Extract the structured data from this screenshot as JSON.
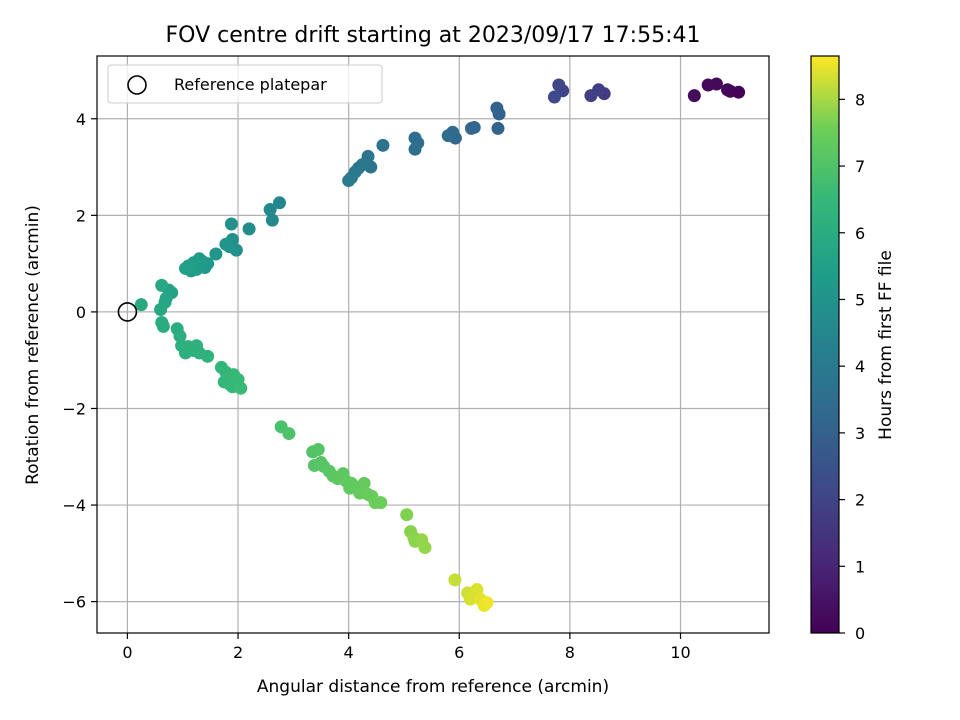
{
  "chart_data": {
    "type": "scatter",
    "title": "FOV centre drift starting at 2023/09/17 17:55:41",
    "xlabel": "Angular distance from reference (arcmin)",
    "ylabel": "Rotation from reference (arcmin)",
    "xlim": [
      -0.55,
      11.6
    ],
    "ylim": [
      -6.65,
      5.3
    ],
    "xticks": [
      0,
      2,
      4,
      6,
      8,
      10
    ],
    "yticks": [
      -6,
      -4,
      -2,
      0,
      2,
      4
    ],
    "xtick_labels": [
      "0",
      "2",
      "4",
      "6",
      "8",
      "10"
    ],
    "ytick_labels": [
      "−6",
      "−4",
      "−2",
      "0",
      "2",
      "4"
    ],
    "grid": true,
    "legend": {
      "position": "upper-left",
      "entries": [
        "Reference platepar"
      ]
    },
    "colorbar": {
      "label": "Hours from first FF file",
      "colormap": "viridis",
      "range": [
        0,
        8.65
      ],
      "ticks": [
        0,
        1,
        2,
        3,
        4,
        5,
        6,
        7,
        8
      ],
      "tick_labels": [
        "0",
        "1",
        "2",
        "3",
        "4",
        "5",
        "6",
        "7",
        "8"
      ]
    },
    "reference_point": {
      "x": 0,
      "y": 0
    },
    "points": [
      [
        11.05,
        4.55,
        0.05
      ],
      [
        10.9,
        4.57,
        0.1
      ],
      [
        10.85,
        4.6,
        0.15
      ],
      [
        10.65,
        4.72,
        0.2
      ],
      [
        10.5,
        4.7,
        0.25
      ],
      [
        10.25,
        4.48,
        0.3
      ],
      [
        8.62,
        4.52,
        1.7
      ],
      [
        8.52,
        4.6,
        1.8
      ],
      [
        8.38,
        4.48,
        1.9
      ],
      [
        7.87,
        4.58,
        2.05
      ],
      [
        7.8,
        4.7,
        2.1
      ],
      [
        7.72,
        4.45,
        2.2
      ],
      [
        6.72,
        4.1,
        3.0
      ],
      [
        6.68,
        4.22,
        3.05
      ],
      [
        6.7,
        3.8,
        3.1
      ],
      [
        6.27,
        3.82,
        3.15
      ],
      [
        6.22,
        3.8,
        3.2
      ],
      [
        5.93,
        3.6,
        3.3
      ],
      [
        5.88,
        3.72,
        3.35
      ],
      [
        5.8,
        3.65,
        3.4
      ],
      [
        5.25,
        3.5,
        3.45
      ],
      [
        5.2,
        3.6,
        3.5
      ],
      [
        5.2,
        3.37,
        3.55
      ],
      [
        4.62,
        3.45,
        3.65
      ],
      [
        4.4,
        3.0,
        3.75
      ],
      [
        4.35,
        3.22,
        3.8
      ],
      [
        4.25,
        3.05,
        3.85
      ],
      [
        4.18,
        2.98,
        3.9
      ],
      [
        4.12,
        2.9,
        3.95
      ],
      [
        4.05,
        2.78,
        4.0
      ],
      [
        4.0,
        2.72,
        4.05
      ],
      [
        2.75,
        2.26,
        4.5
      ],
      [
        2.62,
        1.9,
        4.55
      ],
      [
        2.58,
        2.12,
        4.6
      ],
      [
        2.2,
        1.72,
        4.75
      ],
      [
        1.97,
        1.28,
        4.85
      ],
      [
        1.9,
        1.5,
        4.9
      ],
      [
        1.88,
        1.82,
        4.95
      ],
      [
        1.85,
        1.35,
        5.0
      ],
      [
        1.78,
        1.4,
        5.05
      ],
      [
        1.6,
        1.2,
        5.1
      ],
      [
        1.45,
        1.0,
        5.15
      ],
      [
        1.4,
        0.92,
        5.2
      ],
      [
        1.35,
        1.05,
        5.25
      ],
      [
        1.3,
        1.1,
        5.3
      ],
      [
        1.25,
        0.88,
        5.35
      ],
      [
        1.2,
        1.02,
        5.4
      ],
      [
        1.15,
        0.85,
        5.45
      ],
      [
        1.1,
        0.95,
        5.5
      ],
      [
        1.05,
        0.9,
        5.55
      ],
      [
        0.8,
        0.4,
        5.6
      ],
      [
        0.75,
        0.45,
        5.65
      ],
      [
        0.7,
        0.28,
        5.7
      ],
      [
        0.68,
        0.2,
        5.75
      ],
      [
        0.62,
        0.55,
        5.8
      ],
      [
        0.6,
        0.05,
        5.85
      ],
      [
        0.25,
        0.15,
        5.9
      ],
      [
        0.65,
        -0.3,
        5.95
      ],
      [
        0.62,
        -0.22,
        6.0
      ],
      [
        0.9,
        -0.35,
        6.0
      ],
      [
        0.95,
        -0.5,
        6.05
      ],
      [
        0.98,
        -0.7,
        6.1
      ],
      [
        1.05,
        -0.85,
        6.1
      ],
      [
        1.1,
        -0.72,
        6.15
      ],
      [
        1.2,
        -0.8,
        6.15
      ],
      [
        1.25,
        -0.7,
        6.2
      ],
      [
        1.3,
        -0.85,
        6.2
      ],
      [
        1.45,
        -0.92,
        6.25
      ],
      [
        1.7,
        -1.15,
        6.35
      ],
      [
        1.78,
        -1.25,
        6.4
      ],
      [
        1.75,
        -1.45,
        6.45
      ],
      [
        1.85,
        -1.5,
        6.5
      ],
      [
        1.9,
        -1.55,
        6.5
      ],
      [
        1.92,
        -1.3,
        6.55
      ],
      [
        2.0,
        -1.4,
        6.55
      ],
      [
        2.05,
        -1.58,
        6.6
      ],
      [
        2.78,
        -2.38,
        6.9
      ],
      [
        2.92,
        -2.52,
        7.0
      ],
      [
        3.35,
        -2.9,
        7.05
      ],
      [
        3.45,
        -2.85,
        7.1
      ],
      [
        3.38,
        -3.18,
        7.1
      ],
      [
        3.5,
        -3.12,
        7.15
      ],
      [
        3.55,
        -3.2,
        7.15
      ],
      [
        3.65,
        -3.3,
        7.2
      ],
      [
        3.72,
        -3.4,
        7.2
      ],
      [
        3.8,
        -3.45,
        7.25
      ],
      [
        3.9,
        -3.35,
        7.25
      ],
      [
        3.95,
        -3.5,
        7.3
      ],
      [
        4.02,
        -3.65,
        7.3
      ],
      [
        4.05,
        -3.55,
        7.35
      ],
      [
        4.12,
        -3.62,
        7.35
      ],
      [
        4.2,
        -3.75,
        7.4
      ],
      [
        4.28,
        -3.55,
        7.4
      ],
      [
        4.35,
        -3.78,
        7.45
      ],
      [
        4.42,
        -3.82,
        7.45
      ],
      [
        4.48,
        -3.95,
        7.5
      ],
      [
        4.58,
        -3.95,
        7.5
      ],
      [
        5.05,
        -4.2,
        7.7
      ],
      [
        5.12,
        -4.55,
        7.75
      ],
      [
        5.18,
        -4.68,
        7.8
      ],
      [
        5.2,
        -4.75,
        7.8
      ],
      [
        5.32,
        -4.72,
        7.85
      ],
      [
        5.38,
        -4.88,
        7.85
      ],
      [
        5.92,
        -5.55,
        8.25
      ],
      [
        6.15,
        -5.82,
        8.3
      ],
      [
        6.2,
        -5.95,
        8.35
      ],
      [
        6.28,
        -5.85,
        8.35
      ],
      [
        6.32,
        -5.75,
        8.4
      ],
      [
        6.38,
        -5.95,
        8.45
      ],
      [
        6.45,
        -6.08,
        8.5
      ],
      [
        6.5,
        -6.02,
        8.55
      ]
    ]
  }
}
